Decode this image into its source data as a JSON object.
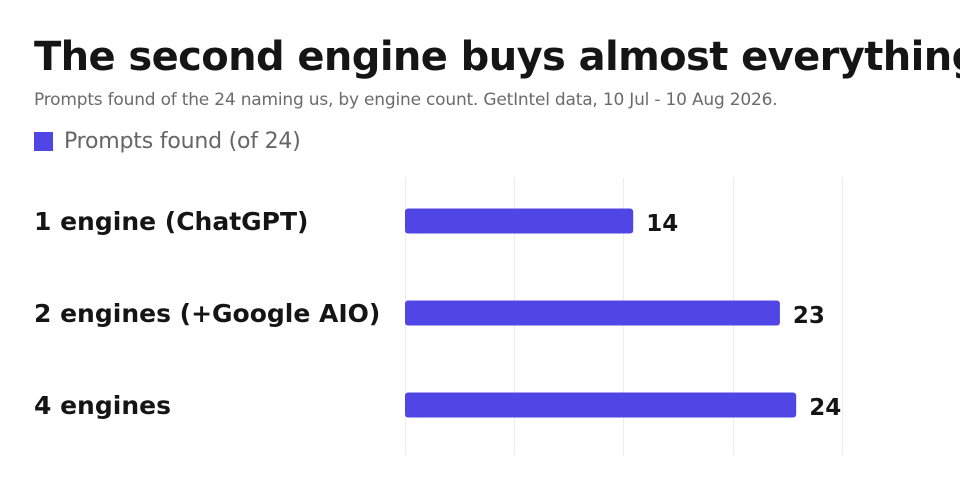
{
  "title": "The second engine buys almost everything",
  "subtitle": "Prompts found of the 24 naming us, by engine count. GetIntel data, 10 Jul - 10 Aug 2026.",
  "legend": {
    "label": "Prompts found (of 24)"
  },
  "colors": {
    "bar": "#4f46e5",
    "grid": "#ececec",
    "text": "#151515"
  },
  "chart_data": {
    "type": "bar",
    "orientation": "horizontal",
    "categories": [
      "1 engine (ChatGPT)",
      "2 engines (+Google AIO)",
      "4 engines"
    ],
    "series": [
      {
        "name": "Prompts found (of 24)",
        "values": [
          14,
          23,
          24
        ]
      }
    ],
    "xlim": [
      0,
      27
    ],
    "grid": true,
    "legend_position": "top-left",
    "data_labels": true
  }
}
